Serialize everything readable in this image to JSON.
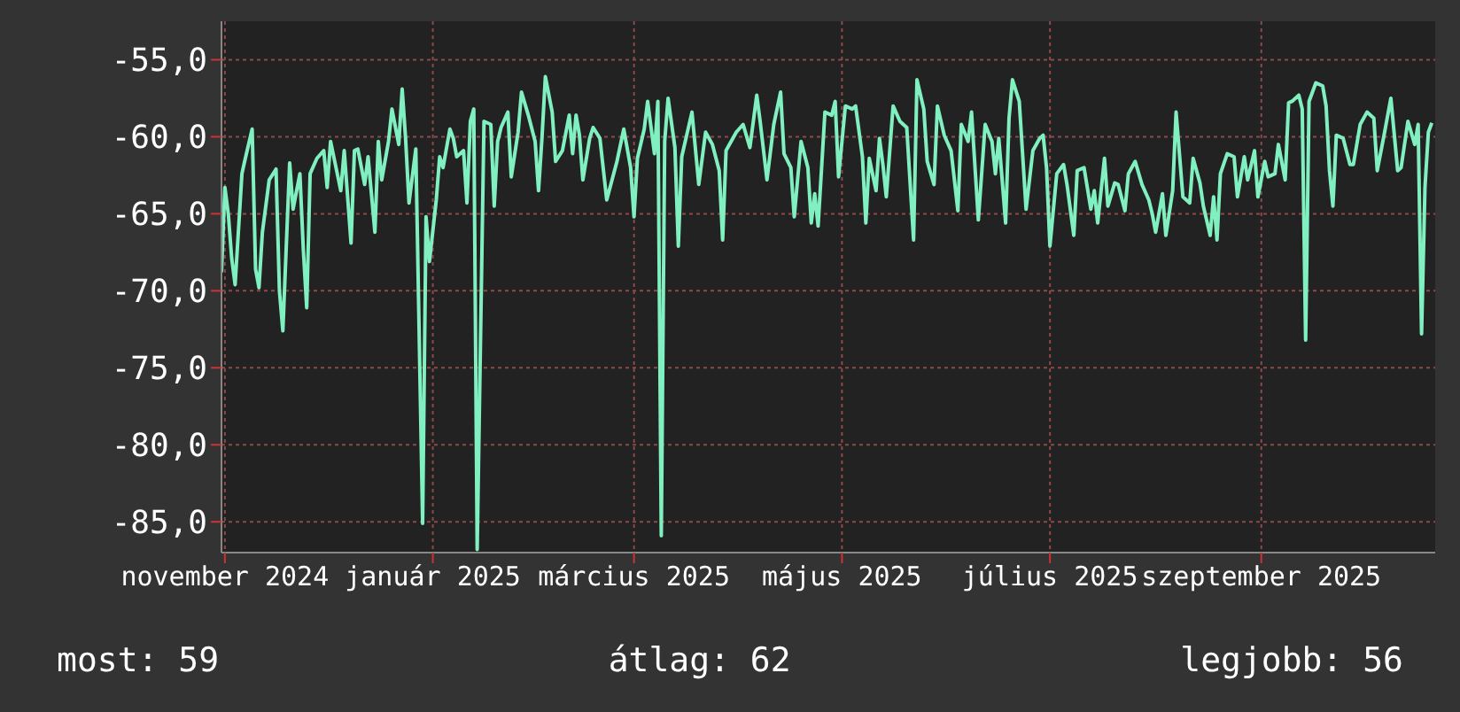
{
  "chart_data": {
    "type": "line",
    "annotations": [
      "most: 59",
      "átlag: 62",
      "legjobb: 56"
    ],
    "x": [
      "2024-10-31",
      "2024-11-01",
      "2024-11-02",
      "2024-11-03",
      "2024-11-04",
      "2024-11-06",
      "2024-11-07",
      "2024-11-09",
      "2024-11-10",
      "2024-11-11",
      "2024-11-12",
      "2024-11-14",
      "2024-11-16",
      "2024-11-17",
      "2024-11-18",
      "2024-11-20",
      "2024-11-21",
      "2024-11-23",
      "2024-11-24",
      "2024-11-25",
      "2024-11-26",
      "2024-11-28",
      "2024-11-30",
      "2024-12-01",
      "2024-12-02",
      "2024-12-05",
      "2024-12-06",
      "2024-12-08",
      "2024-12-09",
      "2024-12-10",
      "2024-12-12",
      "2024-12-13",
      "2024-12-15",
      "2024-12-16",
      "2024-12-17",
      "2024-12-19",
      "2024-12-20",
      "2024-12-22",
      "2024-12-23",
      "2024-12-24",
      "2024-12-25",
      "2024-12-27",
      "2024-12-29",
      "2024-12-30",
      "2024-12-31",
      "2025-01-02",
      "2025-01-03",
      "2025-01-04",
      "2025-01-06",
      "2025-01-07",
      "2025-01-08",
      "2025-01-10",
      "2025-01-11",
      "2025-01-12",
      "2025-01-13",
      "2025-01-14",
      "2025-01-16",
      "2025-01-18",
      "2025-01-19",
      "2025-01-20",
      "2025-01-21",
      "2025-01-23",
      "2025-01-24",
      "2025-01-26",
      "2025-01-27",
      "2025-01-29",
      "2025-01-31",
      "2025-02-01",
      "2025-02-02",
      "2025-02-03",
      "2025-02-05",
      "2025-02-06",
      "2025-02-08",
      "2025-02-10",
      "2025-02-11",
      "2025-02-12",
      "2025-02-13",
      "2025-02-14",
      "2025-02-16",
      "2025-02-17",
      "2025-02-19",
      "2025-02-21",
      "2025-02-24",
      "2025-02-26",
      "2025-02-28",
      "2025-03-01",
      "2025-03-02",
      "2025-03-04",
      "2025-03-05",
      "2025-03-07",
      "2025-03-08",
      "2025-03-09",
      "2025-03-10",
      "2025-03-11",
      "2025-03-13",
      "2025-03-14",
      "2025-03-15",
      "2025-03-18",
      "2025-03-20",
      "2025-03-22",
      "2025-03-24",
      "2025-03-26",
      "2025-03-27",
      "2025-03-28",
      "2025-03-31",
      "2025-04-02",
      "2025-04-04",
      "2025-04-06",
      "2025-04-07",
      "2025-04-09",
      "2025-04-11",
      "2025-04-13",
      "2025-04-14",
      "2025-04-16",
      "2025-04-17",
      "2025-04-19",
      "2025-04-21",
      "2025-04-22",
      "2025-04-23",
      "2025-04-24",
      "2025-04-26",
      "2025-04-28",
      "2025-04-29",
      "2025-04-30",
      "2025-05-02",
      "2025-05-04",
      "2025-05-05",
      "2025-05-07",
      "2025-05-08",
      "2025-05-09",
      "2025-05-11",
      "2025-05-12",
      "2025-05-13",
      "2025-05-14",
      "2025-05-16",
      "2025-05-18",
      "2025-05-20",
      "2025-05-22",
      "2025-05-23",
      "2025-05-25",
      "2025-05-26",
      "2025-05-28",
      "2025-05-29",
      "2025-05-31",
      "2025-06-02",
      "2025-06-04",
      "2025-06-05",
      "2025-06-07",
      "2025-06-08",
      "2025-06-10",
      "2025-06-12",
      "2025-06-14",
      "2025-06-15",
      "2025-06-16",
      "2025-06-18",
      "2025-06-19",
      "2025-06-20",
      "2025-06-22",
      "2025-06-24",
      "2025-06-26",
      "2025-06-28",
      "2025-06-29",
      "2025-06-30",
      "2025-07-01",
      "2025-07-03",
      "2025-07-05",
      "2025-07-06",
      "2025-07-08",
      "2025-07-09",
      "2025-07-11",
      "2025-07-13",
      "2025-07-14",
      "2025-07-15",
      "2025-07-17",
      "2025-07-18",
      "2025-07-20",
      "2025-07-21",
      "2025-07-23",
      "2025-07-24",
      "2025-07-26",
      "2025-07-28",
      "2025-07-30",
      "2025-07-31",
      "2025-08-01",
      "2025-08-03",
      "2025-08-04",
      "2025-08-06",
      "2025-08-07",
      "2025-08-09",
      "2025-08-11",
      "2025-08-12",
      "2025-08-14",
      "2025-08-15",
      "2025-08-17",
      "2025-08-18",
      "2025-08-19",
      "2025-08-20",
      "2025-08-22",
      "2025-08-24",
      "2025-08-25",
      "2025-08-27",
      "2025-08-28",
      "2025-08-30",
      "2025-08-31",
      "2025-09-02",
      "2025-09-03",
      "2025-09-05",
      "2025-09-06",
      "2025-09-08",
      "2025-09-09",
      "2025-09-10",
      "2025-09-12",
      "2025-09-13",
      "2025-09-14",
      "2025-09-15",
      "2025-09-17",
      "2025-09-19",
      "2025-09-20",
      "2025-09-21",
      "2025-09-22",
      "2025-09-23",
      "2025-09-25",
      "2025-09-27",
      "2025-09-28",
      "2025-09-30",
      "2025-10-02",
      "2025-10-04",
      "2025-10-05",
      "2025-10-07",
      "2025-10-09",
      "2025-10-11",
      "2025-10-12",
      "2025-10-14",
      "2025-10-16",
      "2025-10-17",
      "2025-10-18",
      "2025-10-19",
      "2025-10-20",
      "2025-10-21"
    ],
    "series": [
      {
        "color": "#80f0c0",
        "values": [
          -68.8,
          -63.3,
          -65.0,
          -67.9,
          -69.6,
          -62.4,
          -61.4,
          -59.5,
          -68.6,
          -69.8,
          -66.2,
          -62.8,
          -62.1,
          -70.0,
          -72.6,
          -61.7,
          -64.7,
          -62.4,
          -67.3,
          -71.1,
          -62.4,
          -61.4,
          -60.9,
          -63.3,
          -60.3,
          -63.5,
          -60.9,
          -66.9,
          -60.9,
          -60.8,
          -63.1,
          -61.3,
          -66.2,
          -60.3,
          -62.8,
          -60.3,
          -58.2,
          -60.5,
          -56.9,
          -60.1,
          -64.3,
          -60.8,
          -85.1,
          -65.2,
          -68.1,
          -64.1,
          -61.3,
          -62.0,
          -59.5,
          -60.1,
          -61.3,
          -60.9,
          -64.3,
          -59.0,
          -58.2,
          -86.8,
          -59.0,
          -59.2,
          -64.5,
          -60.3,
          -59.4,
          -58.4,
          -62.6,
          -59.7,
          -57.1,
          -58.6,
          -60.3,
          -63.5,
          -60.1,
          -56.1,
          -58.4,
          -61.6,
          -60.9,
          -58.6,
          -61.1,
          -58.6,
          -59.9,
          -62.8,
          -60.1,
          -59.4,
          -60.1,
          -64.1,
          -61.6,
          -59.5,
          -62.0,
          -65.2,
          -61.4,
          -59.5,
          -57.7,
          -61.1,
          -57.7,
          -85.9,
          -60.3,
          -57.5,
          -60.7,
          -67.1,
          -61.3,
          -58.4,
          -63.1,
          -59.7,
          -60.5,
          -62.2,
          -66.7,
          -60.9,
          -59.7,
          -59.2,
          -60.7,
          -57.3,
          -59.0,
          -62.8,
          -59.2,
          -57.1,
          -61.1,
          -62.0,
          -65.2,
          -60.3,
          -62.0,
          -65.6,
          -63.7,
          -65.8,
          -58.4,
          -58.6,
          -57.7,
          -62.6,
          -58.0,
          -58.2,
          -58.0,
          -61.3,
          -65.6,
          -61.4,
          -63.5,
          -60.1,
          -61.8,
          -63.9,
          -58.0,
          -59.0,
          -59.4,
          -66.7,
          -56.3,
          -58.2,
          -61.6,
          -63.1,
          -58.0,
          -59.9,
          -60.9,
          -64.8,
          -59.2,
          -60.3,
          -58.4,
          -65.4,
          -59.2,
          -60.3,
          -62.4,
          -60.1,
          -65.6,
          -58.8,
          -56.3,
          -57.7,
          -64.7,
          -60.9,
          -60.1,
          -59.9,
          -62.0,
          -67.1,
          -62.4,
          -61.8,
          -63.1,
          -66.4,
          -62.2,
          -62.0,
          -64.7,
          -63.5,
          -65.6,
          -61.4,
          -64.5,
          -63.0,
          -63.1,
          -64.8,
          -62.4,
          -61.6,
          -63.1,
          -64.1,
          -65.0,
          -66.2,
          -63.7,
          -66.4,
          -63.5,
          -58.4,
          -63.9,
          -64.3,
          -61.4,
          -63.0,
          -64.5,
          -66.4,
          -63.9,
          -66.7,
          -62.4,
          -61.1,
          -61.3,
          -63.9,
          -61.3,
          -62.8,
          -60.9,
          -63.9,
          -61.6,
          -62.6,
          -62.4,
          -60.5,
          -62.8,
          -57.8,
          -57.7,
          -57.3,
          -58.2,
          -73.2,
          -57.7,
          -56.5,
          -56.7,
          -58.0,
          -62.2,
          -64.5,
          -59.9,
          -60.1,
          -61.8,
          -61.8,
          -59.2,
          -58.4,
          -58.8,
          -62.2,
          -59.9,
          -57.5,
          -62.2,
          -62.0,
          -59.0,
          -60.5,
          -59.2,
          -72.8,
          -63.3,
          -59.7,
          -59.1
        ]
      }
    ],
    "xlim": [
      "2024-10-31",
      "2025-10-22"
    ],
    "xticks": [
      {
        "value": "2024-11-01",
        "label": "november 2024"
      },
      {
        "value": "2025-01-01",
        "label": "január 2025"
      },
      {
        "value": "2025-03-01",
        "label": "március 2025"
      },
      {
        "value": "2025-05-01",
        "label": "május 2025"
      },
      {
        "value": "2025-07-01",
        "label": "július 2025"
      },
      {
        "value": "2025-09-01",
        "label": "szeptember 2025"
      }
    ],
    "ylim": [
      -87,
      -52.5
    ],
    "yticks": [
      {
        "value": -55,
        "label": "-55,0"
      },
      {
        "value": -60,
        "label": "-60,0"
      },
      {
        "value": -65,
        "label": "-65,0"
      },
      {
        "value": -70,
        "label": "-70,0"
      },
      {
        "value": -75,
        "label": "-75,0"
      },
      {
        "value": -80,
        "label": "-80,0"
      },
      {
        "value": -85,
        "label": "-85,0"
      }
    ],
    "grid": true,
    "legend": false,
    "marker": "none",
    "line_style": "solid"
  }
}
